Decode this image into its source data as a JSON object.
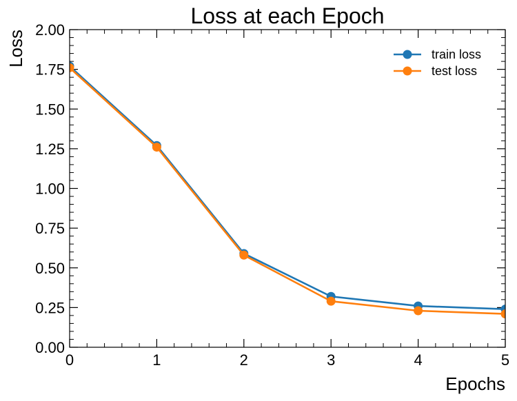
{
  "chart_data": {
    "type": "line",
    "title": "Loss at each Epoch",
    "xlabel": "Epochs",
    "ylabel": "Loss",
    "xlim": [
      0,
      5
    ],
    "ylim": [
      0,
      2
    ],
    "xticks": [
      0,
      1,
      2,
      3,
      4,
      5
    ],
    "xtick_labels": [
      "0",
      "1",
      "2",
      "3",
      "4",
      "5"
    ],
    "yticks": [
      0,
      0.25,
      0.5,
      0.75,
      1.0,
      1.25,
      1.5,
      1.75,
      2.0
    ],
    "ytick_labels": [
      "0.00",
      "0.25",
      "0.50",
      "0.75",
      "1.00",
      "1.25",
      "1.50",
      "1.75",
      "2.00"
    ],
    "grid": false,
    "legend_position": "top-right",
    "series": [
      {
        "name": "train loss",
        "color": "#1f77b4",
        "marker": "circle",
        "x": [
          0,
          1,
          2,
          3,
          4,
          5
        ],
        "y": [
          1.77,
          1.27,
          0.59,
          0.32,
          0.26,
          0.24
        ]
      },
      {
        "name": "test loss",
        "color": "#ff7f0e",
        "marker": "circle",
        "x": [
          0,
          1,
          2,
          3,
          4,
          5
        ],
        "y": [
          1.76,
          1.26,
          0.58,
          0.29,
          0.23,
          0.21
        ]
      }
    ]
  }
}
